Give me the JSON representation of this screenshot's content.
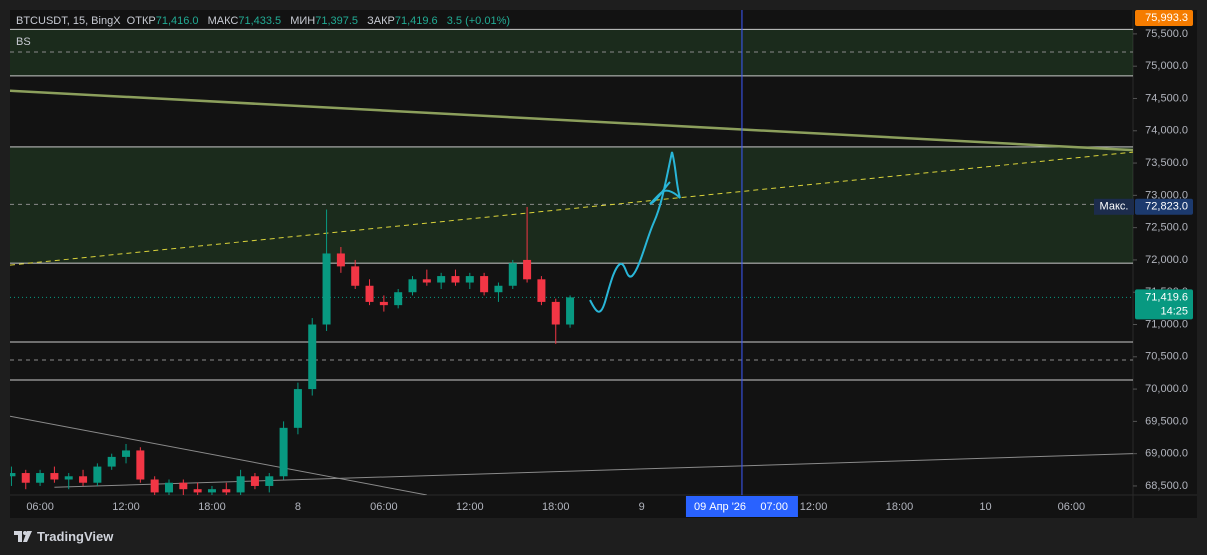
{
  "header": {
    "symbol": "BTCUSDT, 15, BingX",
    "open_label": "ОТКР",
    "open": "71,416.0",
    "high_label": "МАКС",
    "high": "71,433.5",
    "low_label": "МИН",
    "low": "71,397.5",
    "close_label": "ЗАКР",
    "close": "71,419.6",
    "change": "3.5 (+0.01%)",
    "indicator": "BS"
  },
  "chart_data": {
    "type": "candlestick",
    "up_color": "#089981",
    "down_color": "#f23645",
    "x": [
      "2026-04-07 04:00",
      "2026-04-07 05:00",
      "2026-04-07 06:00",
      "2026-04-07 07:00",
      "2026-04-07 08:00",
      "2026-04-07 09:00",
      "2026-04-07 10:00",
      "2026-04-07 11:00",
      "2026-04-07 12:00",
      "2026-04-07 13:00",
      "2026-04-07 14:00",
      "2026-04-07 15:00",
      "2026-04-07 16:00",
      "2026-04-07 17:00",
      "2026-04-07 18:00",
      "2026-04-07 19:00",
      "2026-04-07 20:00",
      "2026-04-07 21:00",
      "2026-04-07 22:00",
      "2026-04-07 23:00",
      "2026-04-08 00:00",
      "2026-04-08 01:00",
      "2026-04-08 02:00",
      "2026-04-08 03:00",
      "2026-04-08 04:00",
      "2026-04-08 05:00",
      "2026-04-08 06:00",
      "2026-04-08 07:00",
      "2026-04-08 08:00",
      "2026-04-08 09:00",
      "2026-04-08 10:00",
      "2026-04-08 11:00",
      "2026-04-08 12:00",
      "2026-04-08 13:00",
      "2026-04-08 14:00",
      "2026-04-08 15:00",
      "2026-04-08 16:00",
      "2026-04-08 17:00",
      "2026-04-08 18:00",
      "2026-04-08 19:00"
    ],
    "open": [
      68650,
      68700,
      68550,
      68700,
      68600,
      68650,
      68550,
      68800,
      68950,
      69050,
      68600,
      68400,
      68550,
      68450,
      68400,
      68450,
      68400,
      68650,
      68500,
      68650,
      69400,
      70000,
      71000,
      72100,
      71900,
      71600,
      71350,
      71300,
      71500,
      71700,
      71650,
      71750,
      71650,
      71750,
      71500,
      71600,
      72000,
      71700,
      71350,
      71000
    ],
    "high": [
      68800,
      68750,
      68750,
      68800,
      68700,
      68750,
      68850,
      69000,
      69150,
      69100,
      68650,
      68600,
      68600,
      68550,
      68500,
      68550,
      68750,
      68700,
      68700,
      69500,
      70100,
      71100,
      72780,
      72200,
      72000,
      71700,
      71450,
      71550,
      71750,
      71850,
      71800,
      71850,
      71800,
      71800,
      71650,
      72000,
      72820,
      71750,
      71400,
      71450
    ],
    "low": [
      68500,
      68450,
      68500,
      68550,
      68450,
      68500,
      68500,
      68750,
      68850,
      68550,
      68300,
      68300,
      68350,
      68300,
      68300,
      68350,
      68350,
      68450,
      68400,
      68600,
      69300,
      69900,
      70900,
      71800,
      71550,
      71300,
      71200,
      71250,
      71450,
      71600,
      71550,
      71600,
      71550,
      71450,
      71350,
      71550,
      71650,
      71300,
      70700,
      70950
    ],
    "close": [
      68700,
      68550,
      68700,
      68600,
      68650,
      68550,
      68800,
      68950,
      69050,
      68600,
      68400,
      68550,
      68450,
      68400,
      68450,
      68400,
      68650,
      68500,
      68650,
      69400,
      70000,
      71000,
      72100,
      71900,
      71600,
      71350,
      71300,
      71500,
      71700,
      71650,
      71750,
      71650,
      71750,
      71500,
      71600,
      71950,
      71700,
      71350,
      71000,
      71420
    ],
    "xlim": [
      "2026-04-07 03:54",
      "2026-04-10 10:18"
    ],
    "xticks": [
      {
        "value": "2026-04-07 06:00",
        "label": "06:00"
      },
      {
        "value": "2026-04-07 12:00",
        "label": "12:00"
      },
      {
        "value": "2026-04-07 18:00",
        "label": "18:00"
      },
      {
        "value": "2026-04-08 00:00",
        "label": "8"
      },
      {
        "value": "2026-04-08 06:00",
        "label": "06:00"
      },
      {
        "value": "2026-04-08 12:00",
        "label": "12:00"
      },
      {
        "value": "2026-04-08 18:00",
        "label": "18:00"
      },
      {
        "value": "2026-04-09 00:00",
        "label": "9"
      },
      {
        "value": "2026-04-09 12:00",
        "label": "12:00"
      },
      {
        "value": "2026-04-09 18:00",
        "label": "18:00"
      },
      {
        "value": "2026-04-10 00:00",
        "label": "10"
      },
      {
        "value": "2026-04-10 06:00",
        "label": "06:00"
      }
    ],
    "ylim": [
      68360,
      75870
    ],
    "yticks": [
      {
        "value": 68500,
        "label": "68,500.0"
      },
      {
        "value": 69000,
        "label": "69,000.0"
      },
      {
        "value": 69500,
        "label": "69,500.0"
      },
      {
        "value": 70000,
        "label": "70,000.0"
      },
      {
        "value": 70500,
        "label": "70,500.0"
      },
      {
        "value": 71000,
        "label": "71,000.0"
      },
      {
        "value": 71500,
        "label": "71,500.0"
      },
      {
        "value": 72000,
        "label": "72,000.0"
      },
      {
        "value": 72500,
        "label": "72,500.0"
      },
      {
        "value": 73000,
        "label": "73,000.0"
      },
      {
        "value": 73500,
        "label": "73,500.0"
      },
      {
        "value": 74000,
        "label": "74,000.0"
      },
      {
        "value": 74500,
        "label": "74,500.0"
      },
      {
        "value": 75000,
        "label": "75,000.0"
      },
      {
        "value": 75500,
        "label": "75,500.0"
      }
    ],
    "zones": [
      {
        "from": 74850,
        "to": 75570
      },
      {
        "from": 71950,
        "to": 73750
      }
    ],
    "levels": [
      70730,
      70140
    ],
    "dashed_levels": [
      75220,
      72860,
      70450
    ],
    "trendlines": [
      {
        "x": [
          "2026-04-07 03:54",
          "2026-04-10 10:18"
        ],
        "y": [
          74620,
          73700
        ],
        "color": "#8c9f5c",
        "width": 2.5,
        "dashed": false
      },
      {
        "x": [
          "2026-04-07 03:54",
          "2026-04-10 10:18"
        ],
        "y": [
          71920,
          73670
        ],
        "color": "#d9d23a",
        "width": 1,
        "dashed": true
      },
      {
        "x": [
          "2026-04-07 03:54",
          "2026-04-08 09:00"
        ],
        "y": [
          69580,
          68360
        ],
        "color": "#8a8a8a",
        "width": 1,
        "dashed": false
      },
      {
        "x": [
          "2026-04-07 07:00",
          "2026-04-10 10:18"
        ],
        "y": [
          68480,
          69000
        ],
        "color": "#8a8a8a",
        "width": 1,
        "dashed": false
      }
    ],
    "top_price": {
      "value": 75993.3,
      "label": "75,993.3"
    },
    "max_price": {
      "text": "Макс.",
      "value": 72823.0,
      "label": "72,823.0"
    },
    "last_price": {
      "value": 71419.6,
      "label": "71,419.6",
      "countdown": "14:25"
    },
    "crosshair": {
      "time": "2026-04-09 07:00",
      "date_label": "09 Апр '26",
      "time_label": "07:00"
    }
  },
  "footer": {
    "brand": "TradingView"
  }
}
